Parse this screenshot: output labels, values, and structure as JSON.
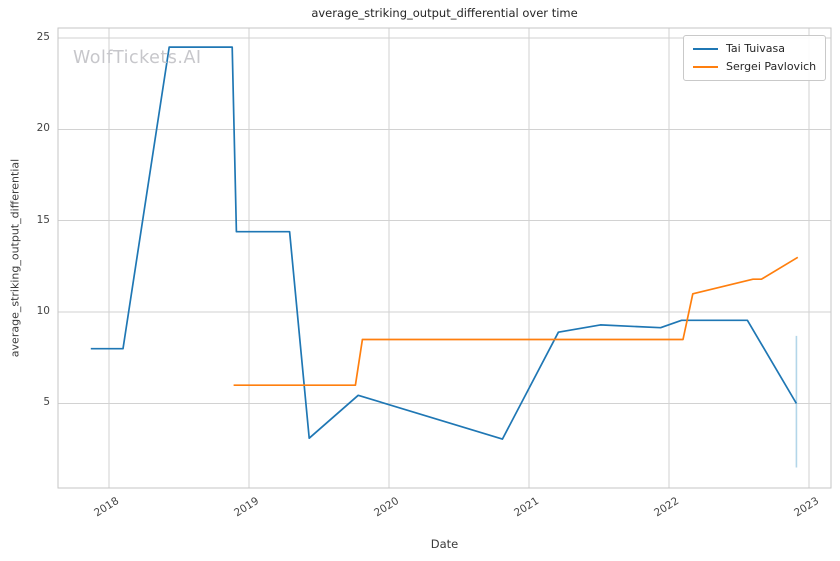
{
  "figure": {
    "title": "average_striking_output_differential over time",
    "watermark": "WolfTickets.AI"
  },
  "chart_data": {
    "type": "line",
    "title": "average_striking_output_differential over time",
    "xlabel": "Date",
    "ylabel": "average_striking_output_differential",
    "xlim": [
      2017.636,
      2023.157
    ],
    "ylim": [
      0.376,
      25.547
    ],
    "x_ticks": [
      2018,
      2019,
      2020,
      2021,
      2022,
      2023
    ],
    "y_ticks": [
      5,
      10,
      15,
      20,
      25
    ],
    "grid": true,
    "legend_position": "upper right",
    "series": [
      {
        "name": "Tai Tuivasa",
        "color": "#1f77b4",
        "points": [
          [
            2017.87,
            8.0
          ],
          [
            2018.1,
            8.0
          ],
          [
            2018.43,
            24.5
          ],
          [
            2018.88,
            24.5
          ],
          [
            2018.91,
            14.4
          ],
          [
            2019.29,
            14.4
          ],
          [
            2019.43,
            3.1
          ],
          [
            2019.78,
            5.45
          ],
          [
            2020.81,
            3.05
          ],
          [
            2021.21,
            8.9
          ],
          [
            2021.51,
            9.3
          ],
          [
            2021.94,
            9.15
          ],
          [
            2022.09,
            9.55
          ],
          [
            2022.56,
            9.55
          ],
          [
            2022.91,
            5.0
          ]
        ]
      },
      {
        "name": "Sergei Pavlovich",
        "color": "#ff7f0e",
        "points": [
          [
            2018.89,
            6.0
          ],
          [
            2019.76,
            6.0
          ],
          [
            2019.81,
            8.5
          ],
          [
            2022.1,
            8.5
          ],
          [
            2022.17,
            11.0
          ],
          [
            2022.6,
            11.8
          ],
          [
            2022.66,
            11.8
          ],
          [
            2022.92,
            13.0
          ]
        ]
      }
    ],
    "error_bar": {
      "series": "Tai Tuivasa",
      "x": 2022.91,
      "y_low": 1.5,
      "y_high": 8.7,
      "color": "#b3d6e9"
    },
    "style": {
      "grid_color": "#d2d2d2",
      "spine_color": "#c6c6c6",
      "tick_color": "#444444",
      "title_color": "#262626",
      "watermark_color": "#c7c7cb",
      "background": "#ffffff"
    }
  }
}
